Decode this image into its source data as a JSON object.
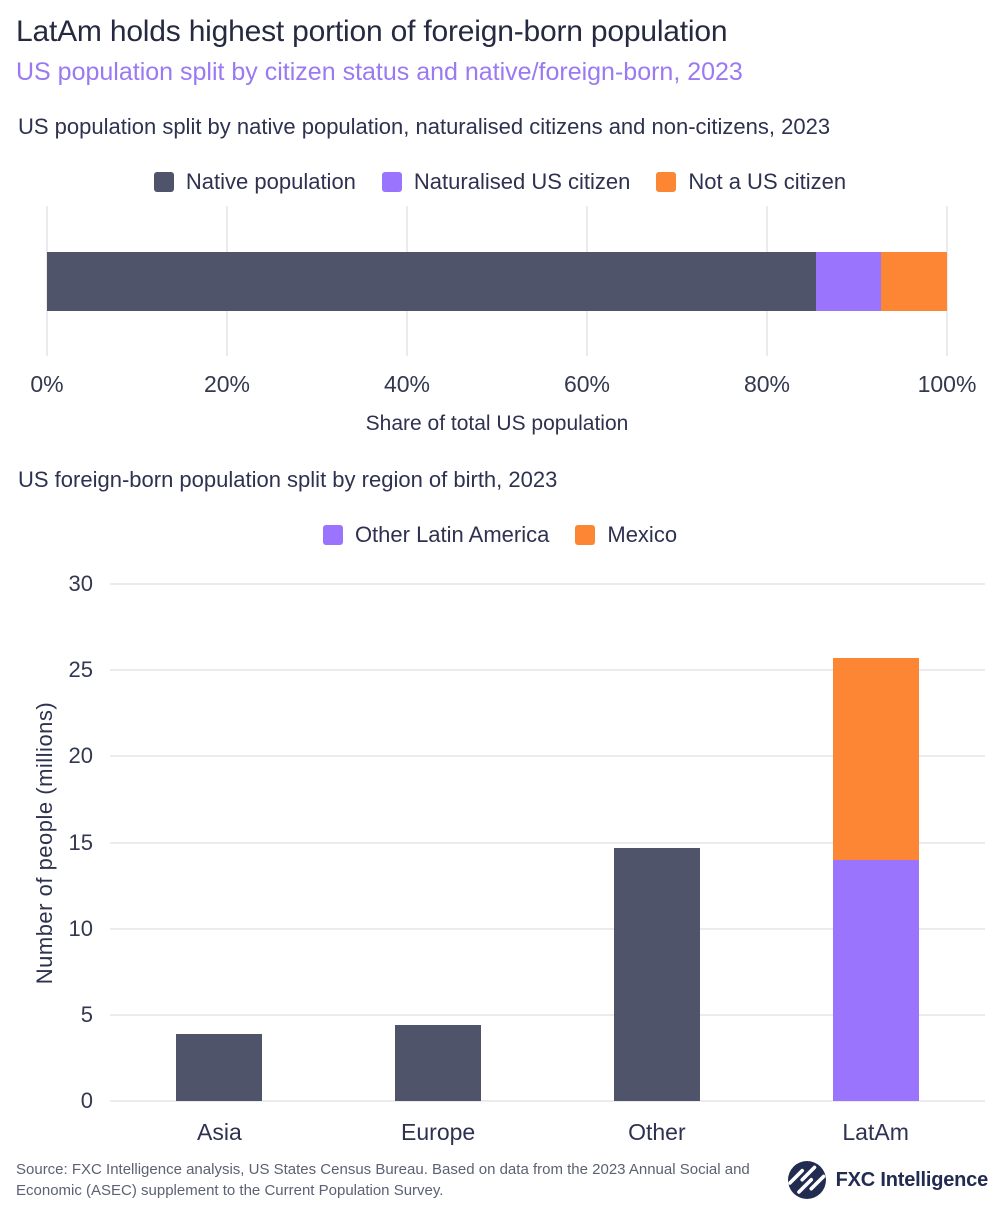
{
  "header": {
    "title": "LatAm holds highest portion of foreign-born population",
    "subtitle": "US population split by citizen status and native/foreign-born, 2023"
  },
  "palette": {
    "dark": "#50546a",
    "purple": "#9b74fd",
    "orange": "#fc8633",
    "gridline": "#eaeaef",
    "title_text": "#262a40",
    "subtitle_text": "#9a79f3",
    "footer_text": "#5c6173",
    "logo_navy": "#222b50"
  },
  "chart_data": [
    {
      "type": "bar",
      "orientation": "horizontal",
      "stacked": true,
      "title": "US population split by native population, naturalised citizens and non-citizens, 2023",
      "series": [
        {
          "name": "Native population",
          "color": "dark",
          "value": 85.4
        },
        {
          "name": "Naturalised US citizen",
          "color": "purple",
          "value": 7.3
        },
        {
          "name": "Not a US citizen",
          "color": "orange",
          "value": 7.3
        }
      ],
      "x_ticks": [
        "0%",
        "20%",
        "40%",
        "60%",
        "80%",
        "100%"
      ],
      "xlabel": "Share of total US population",
      "xlim": [
        0,
        100
      ],
      "grid": "vertical",
      "legend_position": "top-center"
    },
    {
      "type": "bar",
      "orientation": "vertical",
      "stacked": true,
      "title": "US foreign-born population split by region of birth, 2023",
      "categories": [
        "Asia",
        "Europe",
        "Other",
        "LatAm"
      ],
      "legend": [
        {
          "name": "Other Latin America",
          "color": "purple"
        },
        {
          "name": "Mexico",
          "color": "orange"
        }
      ],
      "columns": [
        {
          "segments": [
            {
              "color": "dark",
              "value": 3.9
            }
          ]
        },
        {
          "segments": [
            {
              "color": "dark",
              "value": 4.4
            }
          ]
        },
        {
          "segments": [
            {
              "color": "dark",
              "value": 14.7
            }
          ]
        },
        {
          "segments": [
            {
              "name": "Other Latin America",
              "color": "purple",
              "value": 14.0
            },
            {
              "name": "Mexico",
              "color": "orange",
              "value": 11.7
            }
          ]
        }
      ],
      "y_ticks": [
        30,
        25,
        20,
        15,
        10,
        5,
        0
      ],
      "ylabel": "Number of people (millions)",
      "ylim": [
        0,
        30
      ],
      "grid": "horizontal",
      "legend_position": "top-center"
    }
  ],
  "footer": {
    "source": "Source: FXC Intelligence analysis, US States Census Bureau. Based on data from the 2023 Annual Social and Economic (ASEC) supplement to the Current Population Survey.",
    "logo_text": "FXC Intelligence"
  }
}
